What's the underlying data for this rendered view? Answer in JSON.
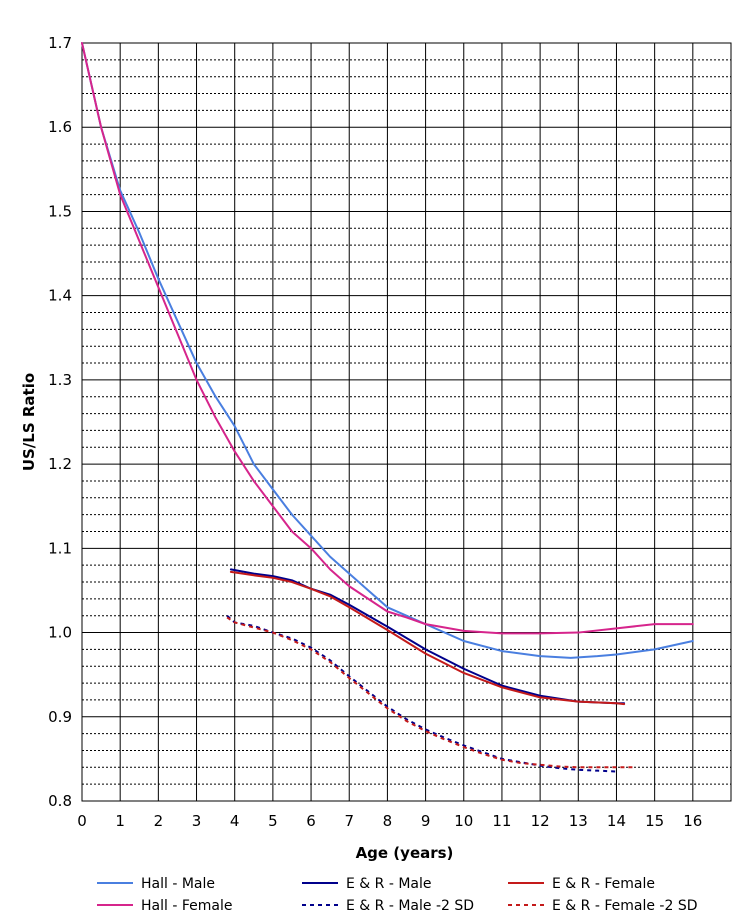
{
  "chart_data": {
    "type": "line",
    "title": "",
    "xlabel": "Age (years)",
    "ylabel": "US/LS Ratio",
    "xlim": [
      0,
      17
    ],
    "ylim": [
      0.8,
      1.7
    ],
    "x_ticks": [
      0,
      1,
      2,
      3,
      4,
      5,
      6,
      7,
      8,
      9,
      10,
      11,
      12,
      13,
      14,
      15,
      16
    ],
    "y_ticks": [
      0.8,
      0.9,
      1.0,
      1.1,
      1.2,
      1.3,
      1.4,
      1.5,
      1.6,
      1.7
    ],
    "x_tick_labels": [
      "0",
      "1",
      "2",
      "3",
      "4",
      "5",
      "6",
      "7",
      "8",
      "9",
      "10",
      "11",
      "12",
      "13",
      "14",
      "15",
      "16"
    ],
    "y_tick_labels": [
      "0.8",
      "0.9",
      "1.0",
      "1.1",
      "1.2",
      "1.3",
      "1.4",
      "1.5",
      "1.6",
      "1.7"
    ],
    "grid": {
      "major_vertical_step": 1,
      "major_horizontal_step": 0.1,
      "minor_horizontal_step": 0.02,
      "minor_style": "dotted"
    },
    "legend_position": "bottom",
    "series": [
      {
        "name": "Hall - Male",
        "color": "#4a7fe0",
        "dash": "solid",
        "points": [
          [
            0,
            1.7
          ],
          [
            0.5,
            1.6
          ],
          [
            1,
            1.525
          ],
          [
            1.5,
            1.475
          ],
          [
            2,
            1.42
          ],
          [
            2.5,
            1.37
          ],
          [
            3,
            1.32
          ],
          [
            3.5,
            1.28
          ],
          [
            4,
            1.245
          ],
          [
            4.5,
            1.2
          ],
          [
            5,
            1.17
          ],
          [
            5.5,
            1.14
          ],
          [
            6,
            1.115
          ],
          [
            6.5,
            1.09
          ],
          [
            7,
            1.07
          ],
          [
            7.5,
            1.05
          ],
          [
            8,
            1.03
          ],
          [
            8.5,
            1.02
          ],
          [
            9,
            1.01
          ],
          [
            10,
            0.99
          ],
          [
            11,
            0.978
          ],
          [
            12,
            0.972
          ],
          [
            12.8,
            0.97
          ],
          [
            13.5,
            0.972
          ],
          [
            14,
            0.974
          ],
          [
            15,
            0.98
          ],
          [
            16,
            0.99
          ]
        ]
      },
      {
        "name": "Hall - Female",
        "color": "#d6258c",
        "dash": "solid",
        "points": [
          [
            0,
            1.7
          ],
          [
            0.5,
            1.6
          ],
          [
            1,
            1.52
          ],
          [
            1.5,
            1.465
          ],
          [
            2,
            1.41
          ],
          [
            2.5,
            1.355
          ],
          [
            3,
            1.3
          ],
          [
            3.5,
            1.255
          ],
          [
            4,
            1.215
          ],
          [
            4.5,
            1.18
          ],
          [
            5,
            1.15
          ],
          [
            5.5,
            1.12
          ],
          [
            6,
            1.1
          ],
          [
            6.5,
            1.075
          ],
          [
            7,
            1.055
          ],
          [
            7.5,
            1.04
          ],
          [
            8,
            1.025
          ],
          [
            8.5,
            1.018
          ],
          [
            9,
            1.01
          ],
          [
            10,
            1.002
          ],
          [
            11,
            0.999
          ],
          [
            12,
            0.999
          ],
          [
            13,
            1.0
          ],
          [
            14,
            1.005
          ],
          [
            15,
            1.01
          ],
          [
            16,
            1.01
          ]
        ]
      },
      {
        "name": "E & R - Male",
        "color": "#00008b",
        "dash": "solid",
        "points": [
          [
            3.9,
            1.075
          ],
          [
            4.5,
            1.07
          ],
          [
            5,
            1.067
          ],
          [
            5.5,
            1.062
          ],
          [
            6,
            1.052
          ],
          [
            6.5,
            1.045
          ],
          [
            7,
            1.033
          ],
          [
            8,
            1.007
          ],
          [
            9,
            0.98
          ],
          [
            10,
            0.957
          ],
          [
            11,
            0.937
          ],
          [
            12,
            0.925
          ],
          [
            13,
            0.918
          ],
          [
            14,
            0.916
          ],
          [
            14.2,
            0.916
          ]
        ]
      },
      {
        "name": "E & R - Female",
        "color": "#c41a1a",
        "dash": "solid",
        "points": [
          [
            3.9,
            1.072
          ],
          [
            4.5,
            1.068
          ],
          [
            5,
            1.065
          ],
          [
            5.5,
            1.06
          ],
          [
            6,
            1.052
          ],
          [
            6.5,
            1.043
          ],
          [
            7,
            1.03
          ],
          [
            8,
            1.003
          ],
          [
            9,
            0.975
          ],
          [
            10,
            0.952
          ],
          [
            11,
            0.935
          ],
          [
            12,
            0.923
          ],
          [
            13,
            0.918
          ],
          [
            14,
            0.916
          ],
          [
            14.2,
            0.915
          ]
        ]
      },
      {
        "name": "E & R - Male -2 SD",
        "color": "#00008b",
        "dash": "dotted",
        "points": [
          [
            3.8,
            1.02
          ],
          [
            4,
            1.012
          ],
          [
            4.5,
            1.008
          ],
          [
            5,
            1.0
          ],
          [
            5.5,
            0.993
          ],
          [
            6,
            0.982
          ],
          [
            6.5,
            0.967
          ],
          [
            7,
            0.948
          ],
          [
            7.5,
            0.93
          ],
          [
            8,
            0.912
          ],
          [
            8.5,
            0.897
          ],
          [
            9,
            0.885
          ],
          [
            9.5,
            0.875
          ],
          [
            10,
            0.866
          ],
          [
            10.5,
            0.858
          ],
          [
            11,
            0.85
          ],
          [
            11.5,
            0.846
          ],
          [
            12,
            0.842
          ],
          [
            12.5,
            0.839
          ],
          [
            13,
            0.837
          ],
          [
            13.5,
            0.836
          ],
          [
            14,
            0.835
          ]
        ]
      },
      {
        "name": "E & R - Female -2 SD",
        "color": "#c41a1a",
        "dash": "dotted",
        "points": [
          [
            3.8,
            1.018
          ],
          [
            4,
            1.012
          ],
          [
            4.5,
            1.006
          ],
          [
            5,
            1.0
          ],
          [
            5.5,
            0.991
          ],
          [
            6,
            0.98
          ],
          [
            6.5,
            0.965
          ],
          [
            7,
            0.946
          ],
          [
            7.5,
            0.928
          ],
          [
            8,
            0.91
          ],
          [
            8.5,
            0.895
          ],
          [
            9,
            0.883
          ],
          [
            9.5,
            0.873
          ],
          [
            10,
            0.864
          ],
          [
            10.5,
            0.856
          ],
          [
            11,
            0.849
          ],
          [
            11.5,
            0.845
          ],
          [
            12,
            0.843
          ],
          [
            12.5,
            0.841
          ],
          [
            13,
            0.84
          ],
          [
            13.5,
            0.84
          ],
          [
            14,
            0.84
          ],
          [
            14.5,
            0.84
          ]
        ]
      }
    ],
    "colors": {
      "background": "#ffffff",
      "grid": "#000000",
      "text": "#000000"
    }
  }
}
